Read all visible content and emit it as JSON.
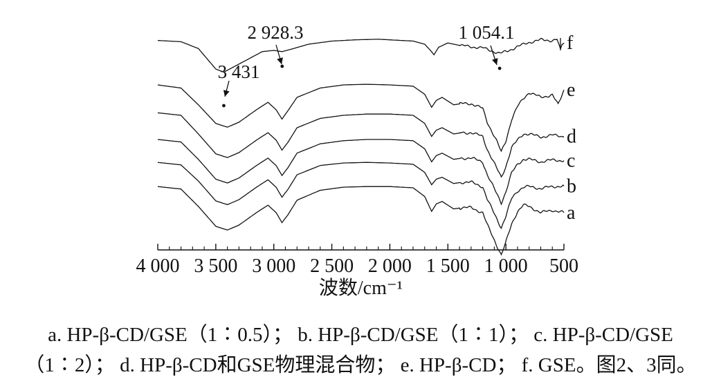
{
  "chart_data": {
    "type": "line",
    "title": "",
    "xlabel": "波数/cm⁻¹",
    "ylabel": "",
    "xlim": [
      4000,
      500
    ],
    "x_reversed": true,
    "grid": false,
    "xticks": [
      4000,
      3500,
      3000,
      2500,
      2000,
      1500,
      1000,
      500
    ],
    "xtick_labels": [
      "4 000",
      "3 500",
      "3 000",
      "2 500",
      "2 000",
      "1 500",
      "1 000",
      "500"
    ],
    "y_units": "stacked transmittance, arbitrary",
    "series": [
      {
        "name": "f",
        "points": [
          [
            4000,
            0.96
          ],
          [
            3800,
            0.94
          ],
          [
            3650,
            0.83
          ],
          [
            3500,
            0.5
          ],
          [
            3431,
            0.45
          ],
          [
            3300,
            0.58
          ],
          [
            3100,
            0.78
          ],
          [
            3000,
            0.8
          ],
          [
            2928.3,
            0.78
          ],
          [
            2850,
            0.82
          ],
          [
            2700,
            0.9
          ],
          [
            2500,
            0.95
          ],
          [
            2300,
            0.97
          ],
          [
            2100,
            0.98
          ],
          [
            1900,
            0.96
          ],
          [
            1800,
            0.95
          ],
          [
            1700,
            0.9
          ],
          [
            1650,
            0.8
          ],
          [
            1620,
            0.73
          ],
          [
            1580,
            0.85
          ],
          [
            1500,
            0.92
          ],
          [
            1400,
            0.88
          ],
          [
            1300,
            0.86
          ],
          [
            1200,
            0.84
          ],
          [
            1100,
            0.78
          ],
          [
            1054.1,
            0.75
          ],
          [
            1000,
            0.78
          ],
          [
            900,
            0.86
          ],
          [
            800,
            0.93
          ],
          [
            700,
            0.97
          ],
          [
            600,
            0.96
          ],
          [
            560,
            0.98
          ],
          [
            530,
            0.8
          ],
          [
            515,
            0.9
          ],
          [
            500,
            0.92
          ]
        ]
      },
      {
        "name": "e",
        "points": [
          [
            4000,
            0.8
          ],
          [
            3800,
            0.75
          ],
          [
            3650,
            0.48
          ],
          [
            3500,
            0.18
          ],
          [
            3400,
            0.12
          ],
          [
            3300,
            0.2
          ],
          [
            3150,
            0.4
          ],
          [
            3050,
            0.52
          ],
          [
            2980,
            0.4
          ],
          [
            2930,
            0.25
          ],
          [
            2880,
            0.38
          ],
          [
            2800,
            0.6
          ],
          [
            2600,
            0.75
          ],
          [
            2400,
            0.8
          ],
          [
            2200,
            0.81
          ],
          [
            2000,
            0.8
          ],
          [
            1800,
            0.78
          ],
          [
            1700,
            0.65
          ],
          [
            1640,
            0.44
          ],
          [
            1600,
            0.55
          ],
          [
            1550,
            0.6
          ],
          [
            1450,
            0.48
          ],
          [
            1380,
            0.5
          ],
          [
            1300,
            0.5
          ],
          [
            1200,
            0.42
          ],
          [
            1160,
            0.2
          ],
          [
            1120,
            0.05
          ],
          [
            1080,
            -0.1
          ],
          [
            1040,
            -0.28
          ],
          [
            1000,
            -0.1
          ],
          [
            950,
            0.25
          ],
          [
            900,
            0.45
          ],
          [
            850,
            0.58
          ],
          [
            800,
            0.68
          ],
          [
            700,
            0.6
          ],
          [
            600,
            0.64
          ],
          [
            550,
            0.48
          ],
          [
            500,
            0.72
          ]
        ]
      },
      {
        "name": "d",
        "points": [
          [
            4000,
            0.74
          ],
          [
            3800,
            0.7
          ],
          [
            3650,
            0.4
          ],
          [
            3500,
            0.08
          ],
          [
            3400,
            0.02
          ],
          [
            3300,
            0.1
          ],
          [
            3150,
            0.3
          ],
          [
            3050,
            0.42
          ],
          [
            2980,
            0.3
          ],
          [
            2930,
            0.14
          ],
          [
            2880,
            0.26
          ],
          [
            2800,
            0.5
          ],
          [
            2600,
            0.65
          ],
          [
            2400,
            0.7
          ],
          [
            2200,
            0.72
          ],
          [
            2000,
            0.72
          ],
          [
            1800,
            0.7
          ],
          [
            1700,
            0.57
          ],
          [
            1640,
            0.36
          ],
          [
            1600,
            0.46
          ],
          [
            1550,
            0.5
          ],
          [
            1450,
            0.4
          ],
          [
            1380,
            0.42
          ],
          [
            1300,
            0.42
          ],
          [
            1200,
            0.36
          ],
          [
            1160,
            0.15
          ],
          [
            1120,
            0.0
          ],
          [
            1080,
            -0.15
          ],
          [
            1040,
            -0.3
          ],
          [
            1000,
            -0.12
          ],
          [
            950,
            0.18
          ],
          [
            900,
            0.3
          ],
          [
            850,
            0.4
          ],
          [
            800,
            0.4
          ],
          [
            700,
            0.35
          ],
          [
            600,
            0.38
          ],
          [
            500,
            0.36
          ]
        ]
      },
      {
        "name": "c",
        "points": [
          [
            4000,
            0.7
          ],
          [
            3800,
            0.66
          ],
          [
            3650,
            0.38
          ],
          [
            3500,
            0.06
          ],
          [
            3400,
            0.0
          ],
          [
            3300,
            0.08
          ],
          [
            3150,
            0.28
          ],
          [
            3050,
            0.4
          ],
          [
            2980,
            0.28
          ],
          [
            2930,
            0.12
          ],
          [
            2880,
            0.24
          ],
          [
            2800,
            0.48
          ],
          [
            2600,
            0.63
          ],
          [
            2400,
            0.68
          ],
          [
            2200,
            0.7
          ],
          [
            2000,
            0.7
          ],
          [
            1800,
            0.68
          ],
          [
            1700,
            0.55
          ],
          [
            1640,
            0.34
          ],
          [
            1600,
            0.44
          ],
          [
            1550,
            0.48
          ],
          [
            1450,
            0.38
          ],
          [
            1380,
            0.4
          ],
          [
            1300,
            0.4
          ],
          [
            1200,
            0.34
          ],
          [
            1160,
            0.13
          ],
          [
            1120,
            -0.02
          ],
          [
            1080,
            -0.17
          ],
          [
            1040,
            -0.32
          ],
          [
            1000,
            -0.14
          ],
          [
            950,
            0.16
          ],
          [
            900,
            0.3
          ],
          [
            850,
            0.38
          ],
          [
            800,
            0.38
          ],
          [
            700,
            0.34
          ],
          [
            600,
            0.37
          ],
          [
            500,
            0.36
          ]
        ]
      },
      {
        "name": "b",
        "points": [
          [
            4000,
            0.72
          ],
          [
            3800,
            0.68
          ],
          [
            3650,
            0.42
          ],
          [
            3500,
            0.1
          ],
          [
            3400,
            0.04
          ],
          [
            3300,
            0.12
          ],
          [
            3150,
            0.32
          ],
          [
            3050,
            0.44
          ],
          [
            2980,
            0.32
          ],
          [
            2930,
            0.16
          ],
          [
            2880,
            0.28
          ],
          [
            2800,
            0.52
          ],
          [
            2600,
            0.67
          ],
          [
            2400,
            0.71
          ],
          [
            2200,
            0.72
          ],
          [
            2000,
            0.71
          ],
          [
            1800,
            0.69
          ],
          [
            1700,
            0.56
          ],
          [
            1640,
            0.36
          ],
          [
            1600,
            0.45
          ],
          [
            1550,
            0.48
          ],
          [
            1450,
            0.38
          ],
          [
            1380,
            0.4
          ],
          [
            1300,
            0.4
          ],
          [
            1200,
            0.33
          ],
          [
            1160,
            0.12
          ],
          [
            1120,
            -0.03
          ],
          [
            1080,
            -0.18
          ],
          [
            1040,
            -0.33
          ],
          [
            1000,
            -0.15
          ],
          [
            950,
            0.14
          ],
          [
            900,
            0.26
          ],
          [
            850,
            0.32
          ],
          [
            800,
            0.33
          ],
          [
            700,
            0.3
          ],
          [
            600,
            0.33
          ],
          [
            500,
            0.34
          ]
        ]
      },
      {
        "name": "a",
        "points": [
          [
            4000,
            0.72
          ],
          [
            3800,
            0.68
          ],
          [
            3650,
            0.4
          ],
          [
            3500,
            0.08
          ],
          [
            3400,
            0.02
          ],
          [
            3300,
            0.1
          ],
          [
            3150,
            0.3
          ],
          [
            3050,
            0.42
          ],
          [
            2980,
            0.3
          ],
          [
            2930,
            0.14
          ],
          [
            2880,
            0.26
          ],
          [
            2800,
            0.5
          ],
          [
            2600,
            0.66
          ],
          [
            2400,
            0.71
          ],
          [
            2200,
            0.72
          ],
          [
            2000,
            0.72
          ],
          [
            1800,
            0.7
          ],
          [
            1700,
            0.56
          ],
          [
            1640,
            0.32
          ],
          [
            1600,
            0.44
          ],
          [
            1550,
            0.48
          ],
          [
            1450,
            0.36
          ],
          [
            1380,
            0.38
          ],
          [
            1300,
            0.38
          ],
          [
            1200,
            0.3
          ],
          [
            1160,
            0.1
          ],
          [
            1120,
            -0.06
          ],
          [
            1080,
            -0.22
          ],
          [
            1040,
            -0.38
          ],
          [
            1000,
            -0.18
          ],
          [
            950,
            0.12
          ],
          [
            900,
            0.32
          ],
          [
            850,
            0.42
          ],
          [
            800,
            0.4
          ],
          [
            700,
            0.3
          ],
          [
            600,
            0.34
          ],
          [
            500,
            0.3
          ]
        ]
      }
    ],
    "annotations": [
      {
        "text": "3 431",
        "x": 3431,
        "series": "f"
      },
      {
        "text": "2 928.3",
        "x": 2928.3,
        "series": "f"
      },
      {
        "text": "1 054.1",
        "x": 1054.1,
        "series": "f"
      }
    ]
  },
  "caption": {
    "line1": "a. HP-β-CD/GSE（1∶0.5）；  b. HP-β-CD/GSE（1∶1）；  c. HP-β-CD/GSE",
    "line2": "（1∶2）；  d. HP-β-CD和GSE物理混合物；  e. HP-β-CD；  f. GSE。图2、3同。"
  }
}
